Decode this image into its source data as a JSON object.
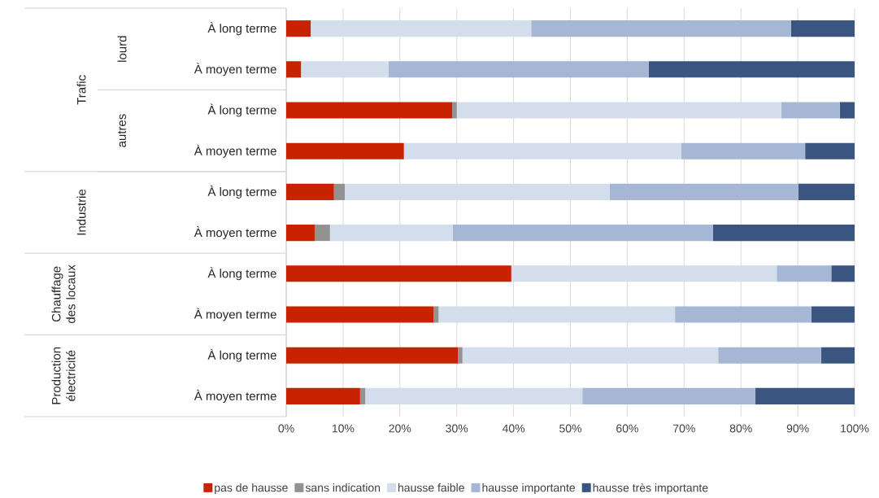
{
  "chart_data": {
    "type": "bar",
    "orientation": "horizontal",
    "stacked": true,
    "categories": [
      "À long terme",
      "À moyen terme",
      "À long terme",
      "À moyen terme",
      "À long terme",
      "À moyen terme",
      "À long terme",
      "À moyen terme",
      "À long terme",
      "À moyen terme"
    ],
    "series": [
      {
        "name": "pas de hausse",
        "color": "#c82300",
        "values": [
          4.3,
          2.6,
          29.2,
          20.7,
          8.4,
          5.0,
          39.6,
          25.9,
          30.2,
          13.0
        ]
      },
      {
        "name": "sans indication",
        "color": "#929292",
        "values": [
          0,
          0,
          0.8,
          0,
          1.9,
          2.7,
          0,
          0.9,
          0.8,
          0.9
        ]
      },
      {
        "name": "hausse faible",
        "color": "#d3ddeb",
        "values": [
          38.8,
          15.4,
          57.1,
          48.8,
          46.6,
          21.6,
          46.7,
          41.6,
          45.0,
          38.2
        ]
      },
      {
        "name": "hausse importante",
        "color": "#a5b7d4",
        "values": [
          45.7,
          45.8,
          10.3,
          21.8,
          33.2,
          45.8,
          9.6,
          24.0,
          18.1,
          30.4
        ]
      },
      {
        "name": "hausse très importante",
        "color": "#3a557f",
        "values": [
          11.2,
          36.2,
          2.6,
          8.7,
          9.9,
          24.9,
          4.1,
          7.6,
          5.9,
          17.5
        ]
      }
    ],
    "xlim": [
      0,
      100
    ],
    "xticks": [
      {
        "value": 0,
        "label": "0%"
      },
      {
        "value": 10,
        "label": "10%"
      },
      {
        "value": 20,
        "label": "20%"
      },
      {
        "value": 30,
        "label": "30%"
      },
      {
        "value": 40,
        "label": "40%"
      },
      {
        "value": 50,
        "label": "50%"
      },
      {
        "value": 60,
        "label": "60%"
      },
      {
        "value": 70,
        "label": "70%"
      },
      {
        "value": 80,
        "label": "80%"
      },
      {
        "value": 90,
        "label": "90%"
      },
      {
        "value": 100,
        "label": "100%"
      }
    ],
    "grid": "x",
    "legend": "bottom",
    "annotations": [
      "Trafic",
      "lourd",
      "autres",
      "Industrie",
      "Chauffage des locaux",
      "Production électricité"
    ]
  }
}
